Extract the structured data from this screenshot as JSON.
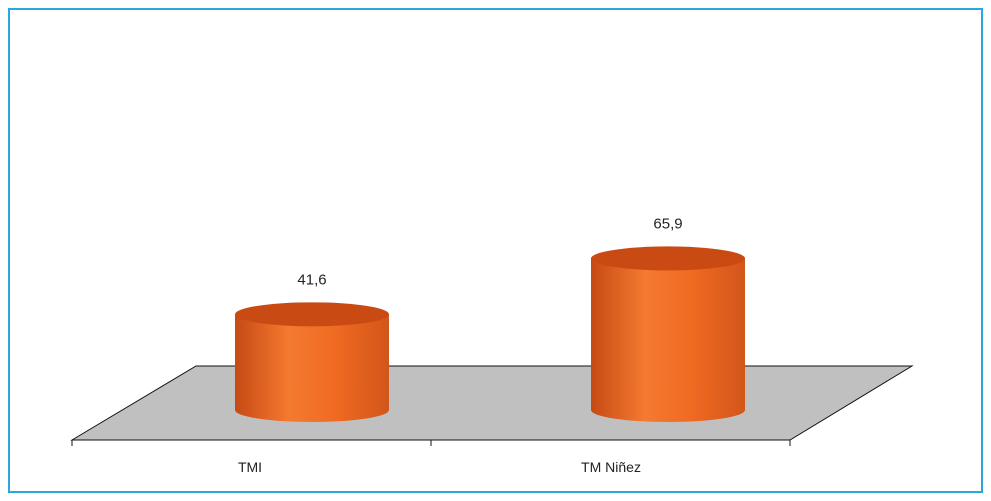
{
  "chart_data": {
    "type": "bar",
    "shape": "cylinder-3d",
    "categories": [
      "TMI",
      "TM Niñez"
    ],
    "values": [
      41.6,
      65.9
    ],
    "value_labels": [
      "41,6",
      "65,9"
    ],
    "title": "",
    "xlabel": "",
    "ylabel": "",
    "ylim": [
      0,
      80
    ],
    "grid": false,
    "legend": "none"
  },
  "colors": {
    "frame": "#2aa8de",
    "floor": "#c0c0c0",
    "bar_body": "#f06a22",
    "bar_top": "#c94a12"
  }
}
